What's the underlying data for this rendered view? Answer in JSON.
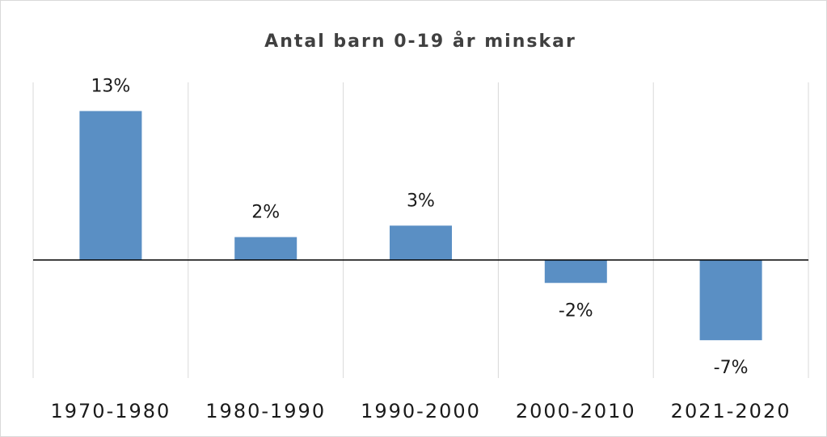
{
  "chart_data": {
    "type": "bar",
    "title": "Antal barn 0-19 år minskar",
    "categories": [
      "1970-1980",
      "1980-1990",
      "1990-2000",
      "2000-2010",
      "2021-2020"
    ],
    "values": [
      13,
      2,
      3,
      -2,
      -7
    ],
    "value_labels": [
      "13%",
      "2%",
      "3%",
      "-2%",
      "-7%"
    ],
    "color": "#5a8fc4",
    "ylim": [
      -10.3,
      15.5
    ]
  }
}
